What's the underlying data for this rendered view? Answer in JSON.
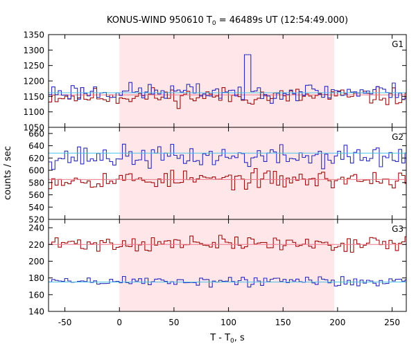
{
  "chart_data": {
    "type": "line",
    "title": {
      "main": "KONUS-WIND 950610 T",
      "sub": "0",
      "rest": " = 46489s UT (12:54:49.000)"
    },
    "xlabel": {
      "main": "T - T",
      "sub": "0",
      "rest": ", s"
    },
    "ylabel": "counts / sec",
    "xlim": [
      -65,
      263
    ],
    "x_ticks": [
      -50,
      0,
      50,
      100,
      150,
      200,
      250
    ],
    "highlight_interval": [
      0,
      197
    ],
    "grid": false,
    "colors": {
      "highlight": "#ffe7e9",
      "red": "#9b0d0d",
      "blue": "#2a2ab8",
      "bg_red": "#ee7788",
      "bg_blue": "#46c4e8"
    },
    "panels": [
      {
        "name": "G1",
        "ylim": [
          1050,
          1350
        ],
        "y_ticks": [
          1050,
          1100,
          1150,
          1200,
          1250,
          1300,
          1350
        ],
        "series": [
          {
            "color": "red",
            "mean": 1150,
            "noise": 22,
            "seed": 11,
            "background": 1155
          },
          {
            "color": "blue",
            "mean": 1165,
            "noise": 22,
            "seed": 23,
            "background": 1162,
            "spike": {
              "x": 116,
              "width": 4,
              "y": 1285
            }
          }
        ]
      },
      {
        "name": "G2",
        "ylim": [
          520,
          670
        ],
        "y_ticks": [
          520,
          540,
          560,
          580,
          600,
          620,
          640,
          660
        ],
        "series": [
          {
            "color": "blue",
            "mean": 622,
            "noise": 14,
            "seed": 37,
            "background": 628
          },
          {
            "color": "red",
            "mean": 585,
            "noise": 11,
            "seed": 53,
            "background": 585
          }
        ]
      },
      {
        "name": "G3",
        "ylim": [
          140,
          250
        ],
        "y_ticks": [
          140,
          160,
          180,
          200,
          220,
          240
        ],
        "series": [
          {
            "color": "red",
            "mean": 221,
            "noise": 7,
            "seed": 71,
            "background": 220
          },
          {
            "color": "blue",
            "mean": 176,
            "noise": 5,
            "seed": 89,
            "background": 175
          }
        ]
      }
    ]
  }
}
